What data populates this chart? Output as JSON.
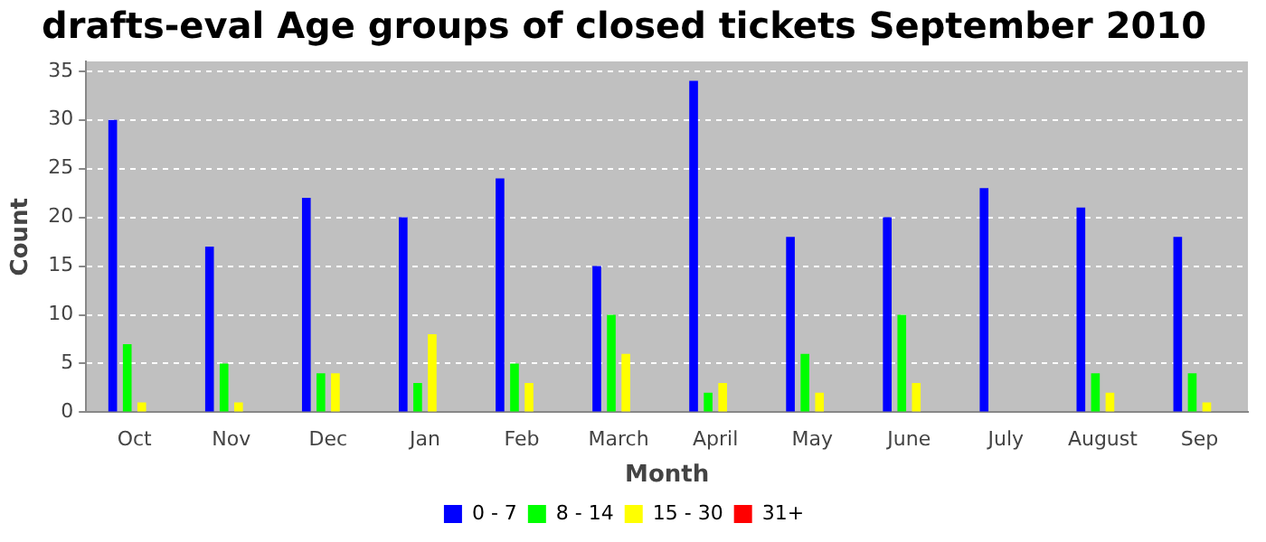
{
  "chart_data": {
    "type": "bar",
    "title": "drafts-eval Age groups of closed tickets September 2010",
    "xlabel": "Month",
    "ylabel": "Count",
    "categories": [
      "Oct",
      "Nov",
      "Dec",
      "Jan",
      "Feb",
      "March",
      "April",
      "May",
      "June",
      "July",
      "August",
      "Sep"
    ],
    "series": [
      {
        "name": "0 - 7",
        "color": "#0000ff",
        "values": [
          30,
          17,
          22,
          20,
          24,
          15,
          34,
          18,
          20,
          23,
          21,
          18
        ]
      },
      {
        "name": "8 - 14",
        "color": "#00ff00",
        "values": [
          7,
          5,
          4,
          3,
          5,
          10,
          2,
          6,
          10,
          0,
          4,
          4
        ]
      },
      {
        "name": "15 - 30",
        "color": "#ffff00",
        "values": [
          1,
          1,
          4,
          8,
          3,
          6,
          3,
          2,
          3,
          0,
          2,
          1
        ]
      },
      {
        "name": "31+",
        "color": "#ff0000",
        "values": [
          0,
          0,
          0,
          0,
          0,
          0,
          0,
          0,
          0,
          0,
          0,
          0
        ]
      }
    ],
    "ylim": [
      0,
      36
    ],
    "yticks": [
      0,
      5,
      10,
      15,
      20,
      25,
      30,
      35
    ],
    "grid": "y",
    "legend": "bottom"
  }
}
